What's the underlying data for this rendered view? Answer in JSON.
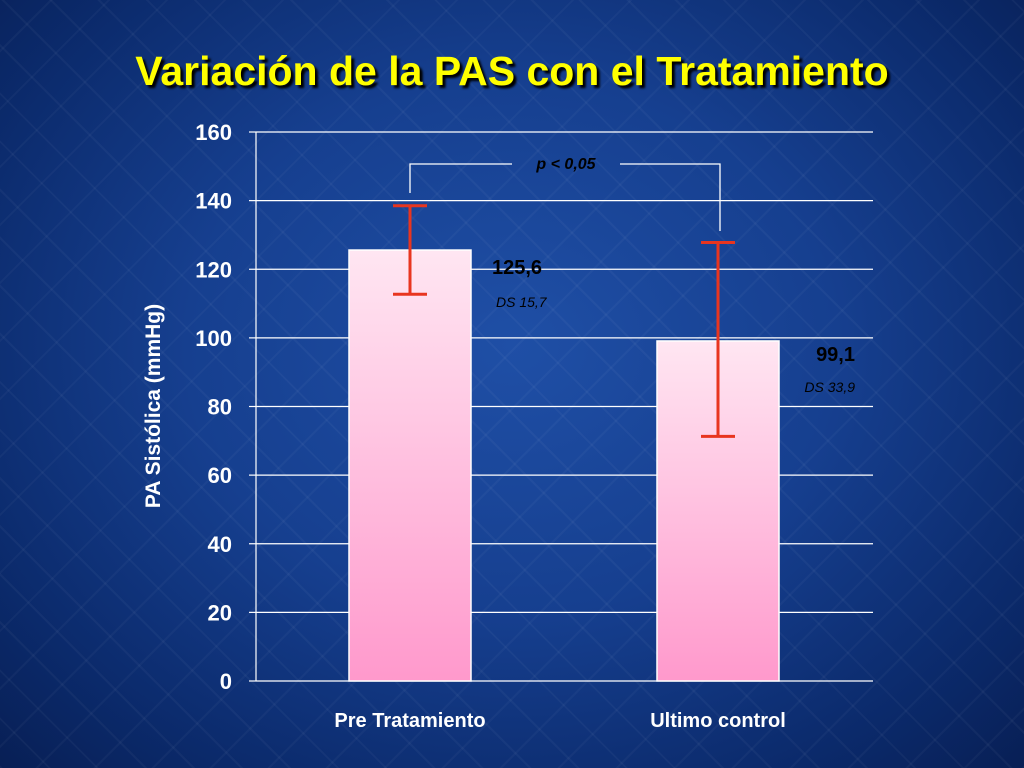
{
  "slide": {
    "title": "Variación de la PAS con el Tratamiento"
  },
  "colors": {
    "title": "#ffff00",
    "bar_top": "#ffe6f2",
    "bar_bottom": "#ff99cc",
    "error_bar": "#e8351f",
    "gridline": "#ffffff",
    "background": "#163f8f"
  },
  "chart_data": {
    "type": "bar",
    "categories": [
      "Pre Tratamiento",
      "Ultimo control"
    ],
    "values": [
      125.6,
      99.1
    ],
    "value_labels": [
      "125,6",
      "99,1"
    ],
    "error": [
      {
        "upper": 138.5,
        "lower": 112.7
      },
      {
        "upper": 127.8,
        "lower": 71.3
      }
    ],
    "sd_labels": [
      "DS 15,7",
      "DS 33,9"
    ],
    "significance": "p < 0,05",
    "ylabel": "PA Sistólica (mmHg)",
    "xlabel": "",
    "ylim": [
      0,
      160
    ],
    "yticks": [
      "0",
      "20",
      "40",
      "60",
      "80",
      "100",
      "120",
      "140",
      "160"
    ],
    "grid": true
  }
}
